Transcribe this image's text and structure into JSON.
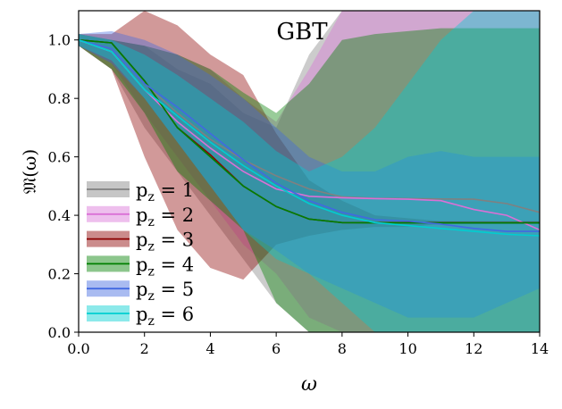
{
  "chart_data": {
    "type": "area",
    "title": "GBT",
    "xlabel": "ω",
    "ylabel": "𝔐(ω)",
    "xlim": [
      0,
      14
    ],
    "ylim": [
      0,
      1.1
    ],
    "xticks": [
      "0.0",
      "2",
      "4",
      "6",
      "8",
      "10",
      "12",
      "14"
    ],
    "yticks": [
      "0.0",
      "0.2",
      "0.4",
      "0.6",
      "0.8",
      "1.0"
    ],
    "grid": false,
    "legend": "lower-left",
    "x": [
      0,
      1,
      2,
      3,
      4,
      5,
      6,
      7,
      8,
      9,
      10,
      11,
      12,
      13,
      14
    ],
    "series": [
      {
        "name": "p_z = 1",
        "color": "#808080",
        "values": [
          1.0,
          0.97,
          0.85,
          0.75,
          0.66,
          0.59,
          0.535,
          0.49,
          0.463,
          0.458,
          0.457,
          0.456,
          0.455,
          0.44,
          0.41
        ],
        "lower": [
          0.98,
          0.9,
          0.7,
          0.55,
          0.4,
          0.25,
          0.1,
          0.0,
          0,
          0,
          0,
          0,
          0,
          0,
          0
        ],
        "upper": [
          1.02,
          1.0,
          0.98,
          0.9,
          0.85,
          0.75,
          0.7,
          0.95,
          1.1,
          1.1,
          1.1,
          1.1,
          1.1,
          1.1,
          1.1
        ]
      },
      {
        "name": "p_z = 2",
        "color": "#da70d6",
        "values": [
          1.0,
          0.96,
          0.83,
          0.72,
          0.63,
          0.55,
          0.49,
          0.465,
          0.46,
          0.457,
          0.455,
          0.45,
          0.42,
          0.4,
          0.35
        ],
        "lower": [
          0.98,
          0.92,
          0.75,
          0.6,
          0.45,
          0.3,
          0.2,
          0.05,
          0,
          0,
          0,
          0,
          0,
          0,
          0
        ],
        "upper": [
          1.02,
          1.0,
          0.98,
          0.95,
          0.9,
          0.8,
          0.72,
          0.9,
          1.1,
          1.1,
          1.1,
          1.1,
          1.1,
          1.1,
          1.1
        ]
      },
      {
        "name": "p_z = 3",
        "color": "#8b0000",
        "values": [
          1.0,
          0.99,
          0.86,
          0.7,
          0.607,
          0.5,
          0.43,
          0.387,
          0.375,
          0.375,
          0.375,
          0.375,
          0.375,
          0.375,
          0.375
        ],
        "lower": [
          0.98,
          0.9,
          0.6,
          0.35,
          0.22,
          0.18,
          0.3,
          0.33,
          0.35,
          0.36,
          0.36,
          0.37,
          0.37,
          0.37,
          0.37
        ],
        "upper": [
          1.02,
          1.02,
          1.1,
          1.05,
          0.95,
          0.88,
          0.68,
          0.52,
          0.45,
          0.4,
          0.39,
          0.38,
          0.38,
          0.38,
          0.38
        ]
      },
      {
        "name": "p_z = 4",
        "color": "#008000",
        "values": [
          1.0,
          0.99,
          0.86,
          0.7,
          0.6,
          0.5,
          0.43,
          0.387,
          0.375,
          0.374,
          0.374,
          0.374,
          0.374,
          0.374,
          0.374
        ],
        "lower": [
          0.98,
          0.9,
          0.75,
          0.55,
          0.45,
          0.35,
          0.1,
          0.0,
          0,
          0,
          0,
          0,
          0,
          0,
          0
        ],
        "upper": [
          1.02,
          1.0,
          0.98,
          0.95,
          0.9,
          0.82,
          0.75,
          0.85,
          1.0,
          1.02,
          1.03,
          1.04,
          1.04,
          1.04,
          1.04
        ]
      },
      {
        "name": "p_z = 5",
        "color": "#4169e1",
        "values": [
          1.0,
          0.97,
          0.85,
          0.77,
          0.68,
          0.59,
          0.51,
          0.45,
          0.41,
          0.385,
          0.38,
          0.37,
          0.355,
          0.345,
          0.345
        ],
        "lower": [
          0.98,
          0.92,
          0.8,
          0.65,
          0.5,
          0.35,
          0.28,
          0.2,
          0.15,
          0.1,
          0.05,
          0.05,
          0.05,
          0.1,
          0.15
        ],
        "upper": [
          1.02,
          1.03,
          1.0,
          0.95,
          0.88,
          0.8,
          0.7,
          0.6,
          0.55,
          0.55,
          0.6,
          0.62,
          0.6,
          0.6,
          0.6
        ]
      },
      {
        "name": "p_z = 6",
        "color": "#00ced1",
        "values": [
          1.0,
          0.96,
          0.83,
          0.74,
          0.65,
          0.57,
          0.5,
          0.44,
          0.4,
          0.375,
          0.365,
          0.355,
          0.345,
          0.335,
          0.33
        ],
        "lower": [
          0.98,
          0.93,
          0.8,
          0.65,
          0.5,
          0.35,
          0.25,
          0.2,
          0.1,
          0.0,
          0,
          0,
          0,
          0,
          0
        ],
        "upper": [
          1.02,
          1.0,
          0.95,
          0.88,
          0.8,
          0.72,
          0.62,
          0.55,
          0.6,
          0.7,
          0.85,
          1.0,
          1.1,
          1.1,
          1.1
        ]
      }
    ]
  }
}
